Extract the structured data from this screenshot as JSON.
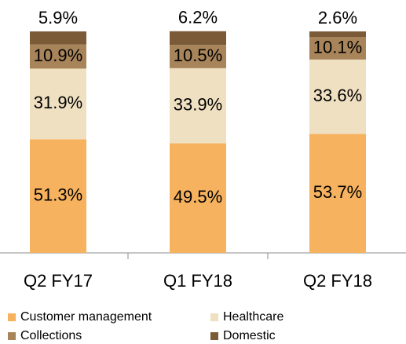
{
  "chart_data": {
    "type": "stacked_bar",
    "categories": [
      "Q2 FY17",
      "Q1 FY18",
      "Q2 FY18"
    ],
    "series": [
      {
        "name": "Customer management",
        "color": "#f6b25f",
        "values": [
          51.3,
          49.5,
          53.7
        ],
        "value_labels": [
          "51.3%",
          "49.5%",
          "53.7%"
        ]
      },
      {
        "name": "Healthcare",
        "color": "#f0e0c2",
        "values": [
          31.9,
          33.9,
          33.6
        ],
        "value_labels": [
          "31.9%",
          "33.9%",
          "33.6%"
        ]
      },
      {
        "name": "Collections",
        "color": "#a8845a",
        "values": [
          10.9,
          10.5,
          10.1
        ],
        "value_labels": [
          "10.9%",
          "10.5%",
          "10.1%"
        ]
      },
      {
        "name": "Domestic",
        "color": "#7b5b37",
        "values": [
          5.9,
          6.2,
          2.6
        ],
        "value_labels": [
          "5.9%",
          "6.2%",
          "2.6%"
        ]
      }
    ]
  }
}
